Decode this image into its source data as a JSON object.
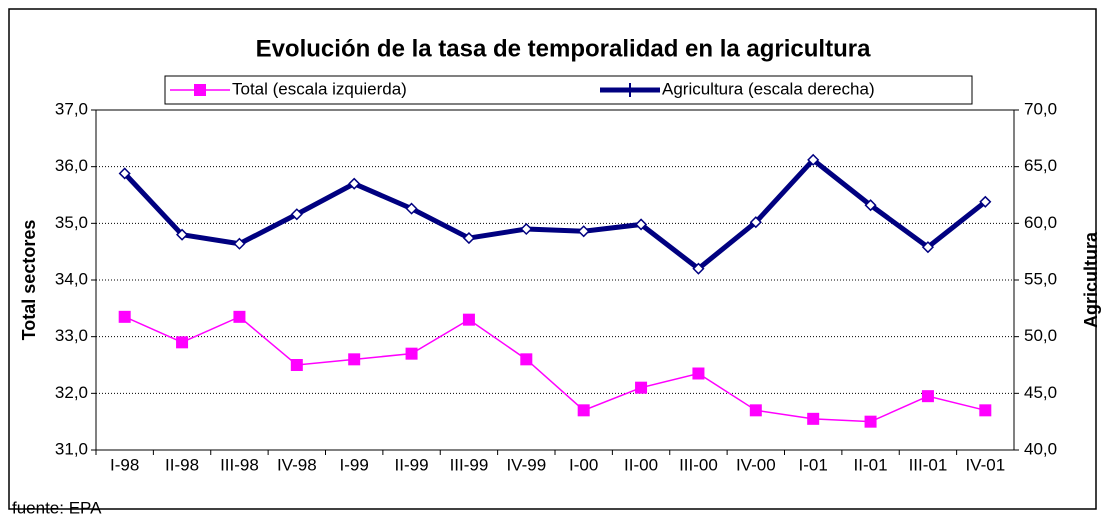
{
  "chart_data": {
    "type": "line",
    "title": "Evolución de la tasa de temporalidad en la agricultura",
    "ylabel": "Total sectores",
    "y2label": "Agricultura",
    "source": "fuente: EPA",
    "categories": [
      "I-98",
      "II-98",
      "III-98",
      "IV-98",
      "I-99",
      "II-99",
      "III-99",
      "IV-99",
      "I-00",
      "II-00",
      "III-00",
      "IV-00",
      "I-01",
      "II-01",
      "III-01",
      "IV-01"
    ],
    "series": [
      {
        "name": "Total (escala izquierda)",
        "color": "#ff00ff",
        "axis": "y",
        "values": [
          33.35,
          32.9,
          33.35,
          32.5,
          32.6,
          32.7,
          33.3,
          32.6,
          31.7,
          32.1,
          32.35,
          31.7,
          31.55,
          31.5,
          31.95,
          31.7
        ]
      },
      {
        "name": "Agricultura (escala derecha)",
        "color": "#000080",
        "axis": "y2",
        "values": [
          64.4,
          59.0,
          58.2,
          60.8,
          63.5,
          61.3,
          58.7,
          59.5,
          59.3,
          59.9,
          56.0,
          60.1,
          65.6,
          61.6,
          57.9,
          61.9
        ]
      }
    ],
    "ylim": [
      31,
      37
    ],
    "yticks": [
      {
        "value": 31,
        "label": "31,0"
      },
      {
        "value": 32,
        "label": "32,0"
      },
      {
        "value": 33,
        "label": "33,0"
      },
      {
        "value": 34,
        "label": "34,0"
      },
      {
        "value": 35,
        "label": "35,0"
      },
      {
        "value": 36,
        "label": "36,0"
      },
      {
        "value": 37,
        "label": "37,0"
      }
    ],
    "y2lim": [
      40,
      70
    ],
    "y2ticks": [
      {
        "value": 40,
        "label": "40,0"
      },
      {
        "value": 45,
        "label": "45,0"
      },
      {
        "value": 50,
        "label": "50,0"
      },
      {
        "value": 55,
        "label": "55,0"
      },
      {
        "value": 60,
        "label": "60,0"
      },
      {
        "value": 65,
        "label": "65,0"
      },
      {
        "value": 70,
        "label": "70,0"
      }
    ],
    "grid": true
  }
}
